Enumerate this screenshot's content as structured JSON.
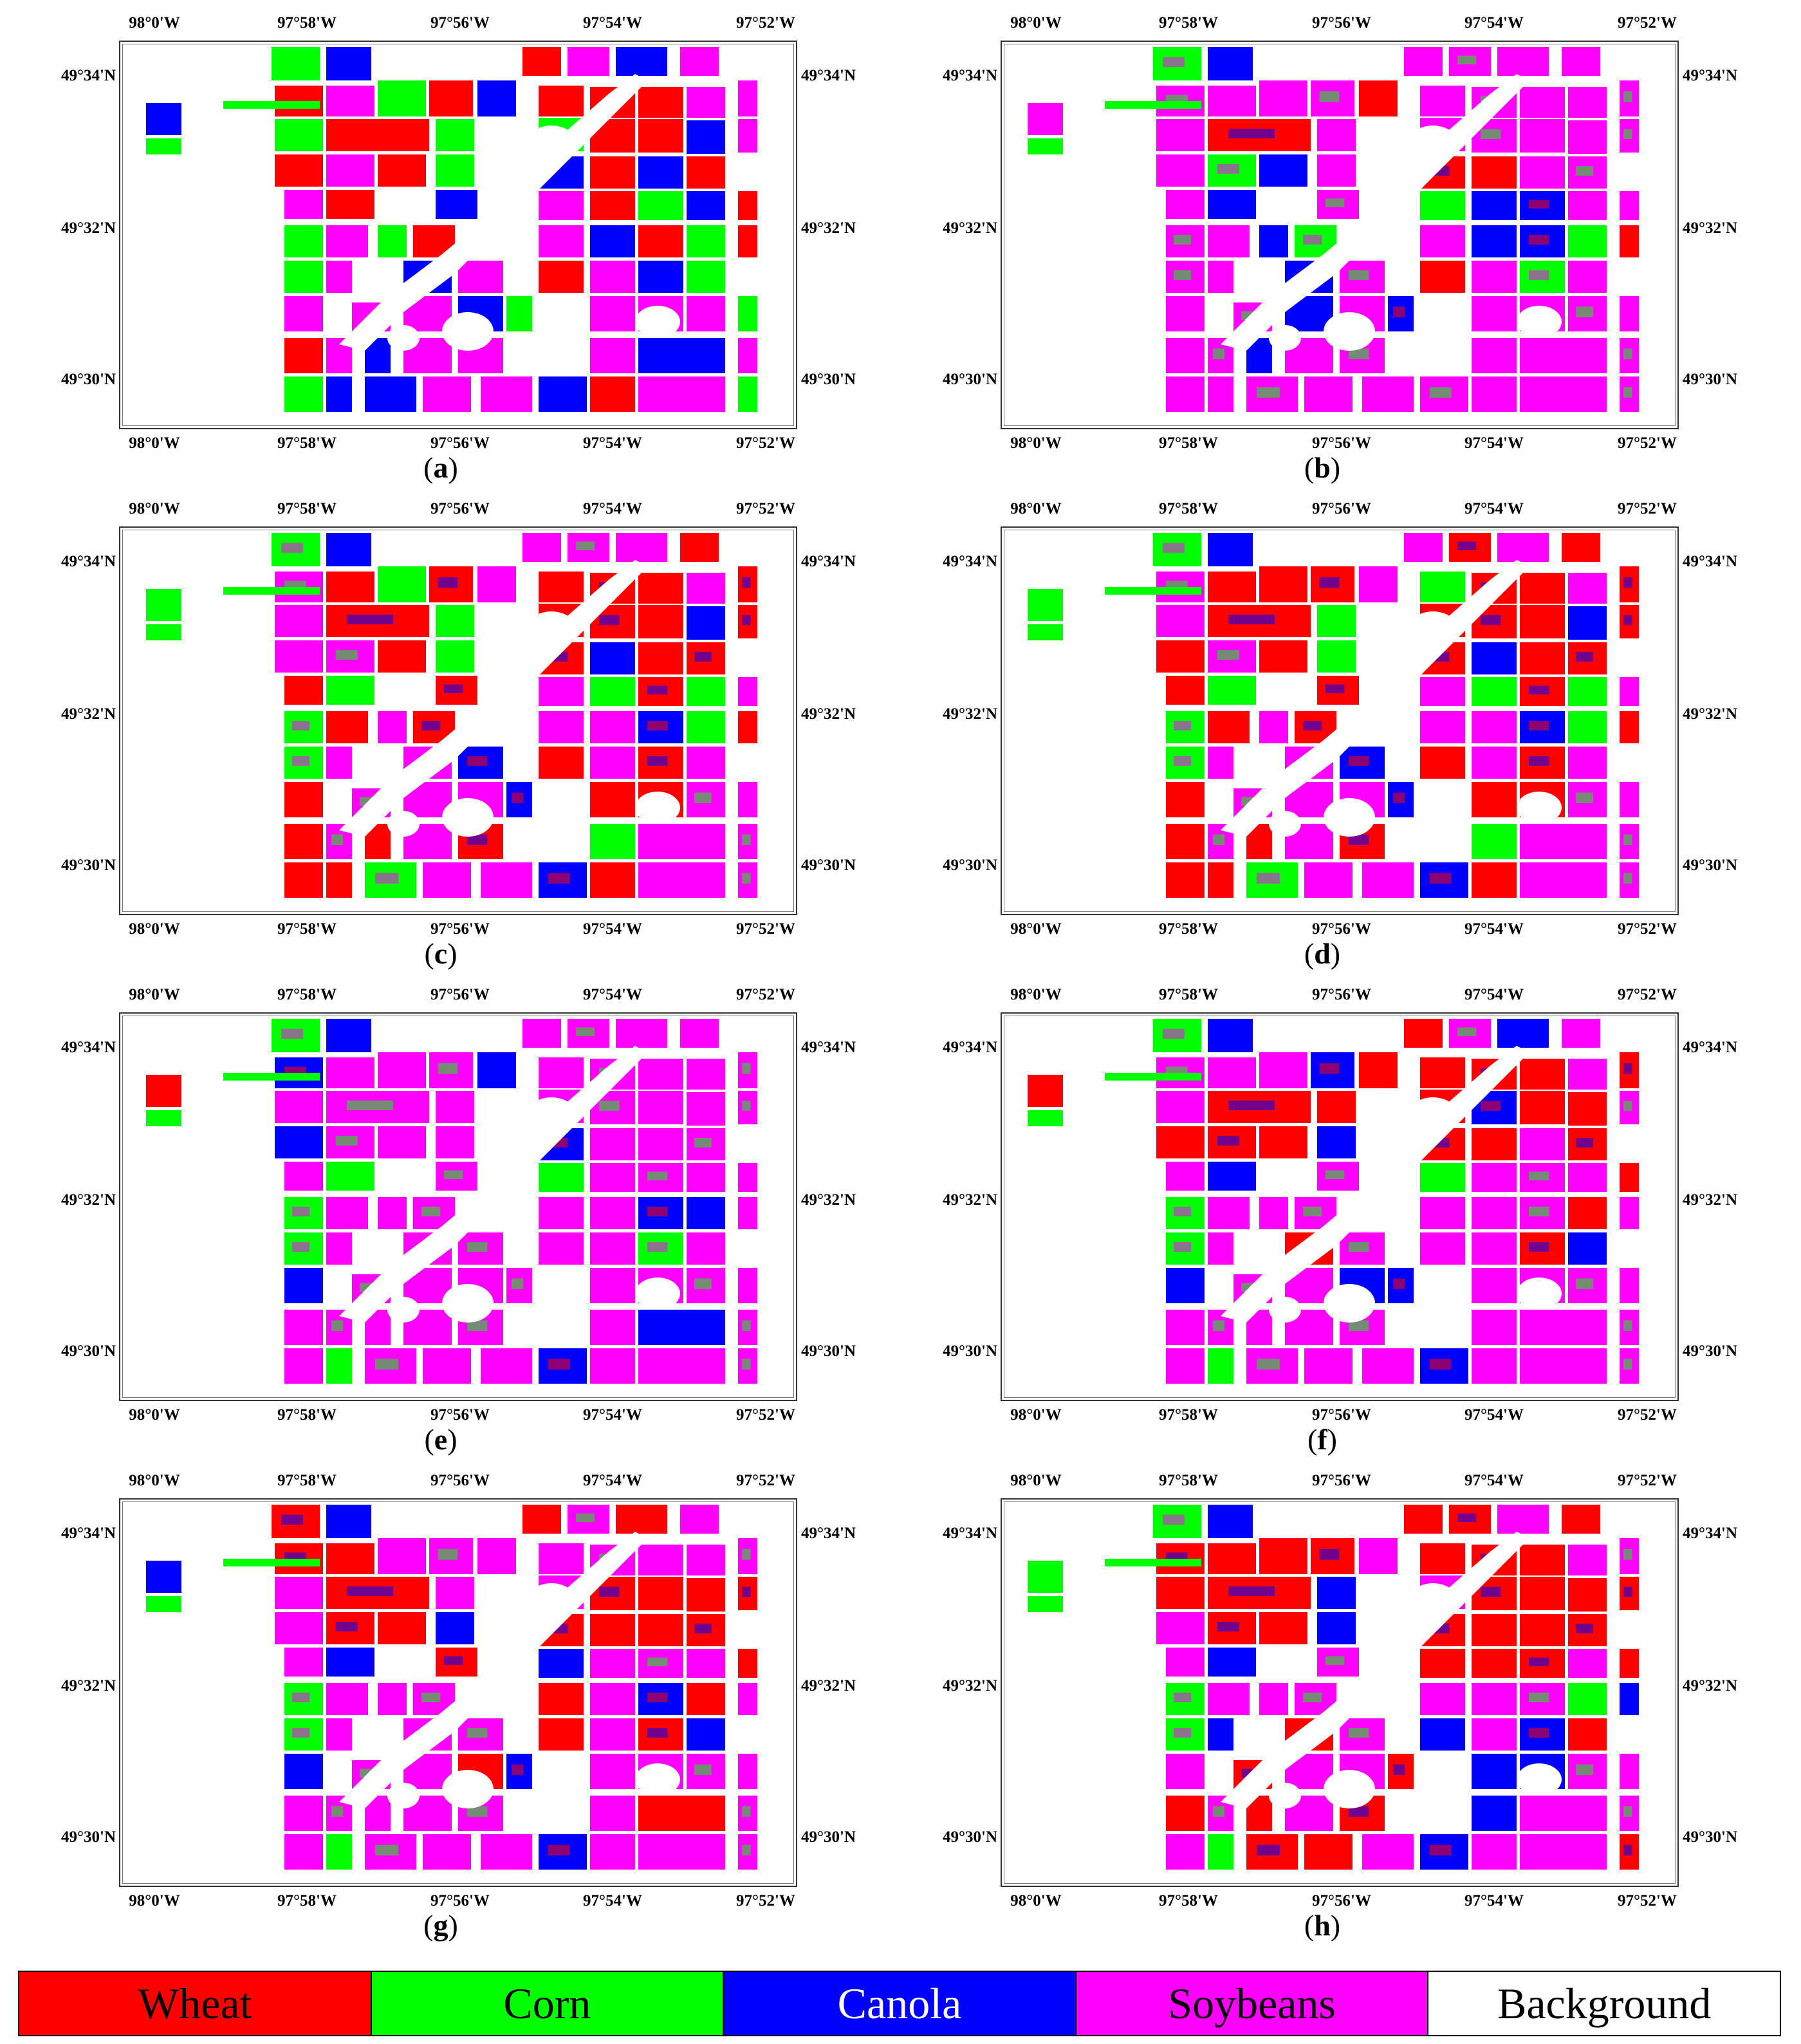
{
  "colors": {
    "wheat": "#ff0000",
    "corn": "#00ff00",
    "canola": "#0000ff",
    "soybeans": "#ff00ff",
    "background": "#ffffff"
  },
  "axes": {
    "lon_labels": [
      "98°0'W",
      "97°58'W",
      "97°56'W",
      "97°54'W",
      "97°52'W"
    ],
    "lat_labels": [
      "49°34'N",
      "49°32'N",
      "49°30'N"
    ]
  },
  "panels": [
    {
      "id": "a",
      "label": "a",
      "open": "(",
      "close": ")"
    },
    {
      "id": "b",
      "label": "b",
      "open": "(",
      "close": ")"
    },
    {
      "id": "c",
      "label": "c",
      "open": "(",
      "close": ")"
    },
    {
      "id": "d",
      "label": "d",
      "open": "(",
      "close": ")"
    },
    {
      "id": "e",
      "label": "e",
      "open": "(",
      "close": ")"
    },
    {
      "id": "f",
      "label": "f",
      "open": "(",
      "close": ")"
    },
    {
      "id": "g",
      "label": "g",
      "open": "(",
      "close": ")"
    },
    {
      "id": "h",
      "label": "h",
      "open": "(",
      "close": ")"
    }
  ],
  "legend": [
    {
      "name": "Wheat",
      "color": "#ff0000",
      "text_color": "#000000"
    },
    {
      "name": "Corn",
      "color": "#00ff00",
      "text_color": "#000000"
    },
    {
      "name": "Canola",
      "color": "#0000ff",
      "text_color": "#ffffff"
    },
    {
      "name": "Soybeans",
      "color": "#ff00ff",
      "text_color": "#000000"
    },
    {
      "name": "Background",
      "color": "#ffffff",
      "text_color": "#000000"
    }
  ]
}
